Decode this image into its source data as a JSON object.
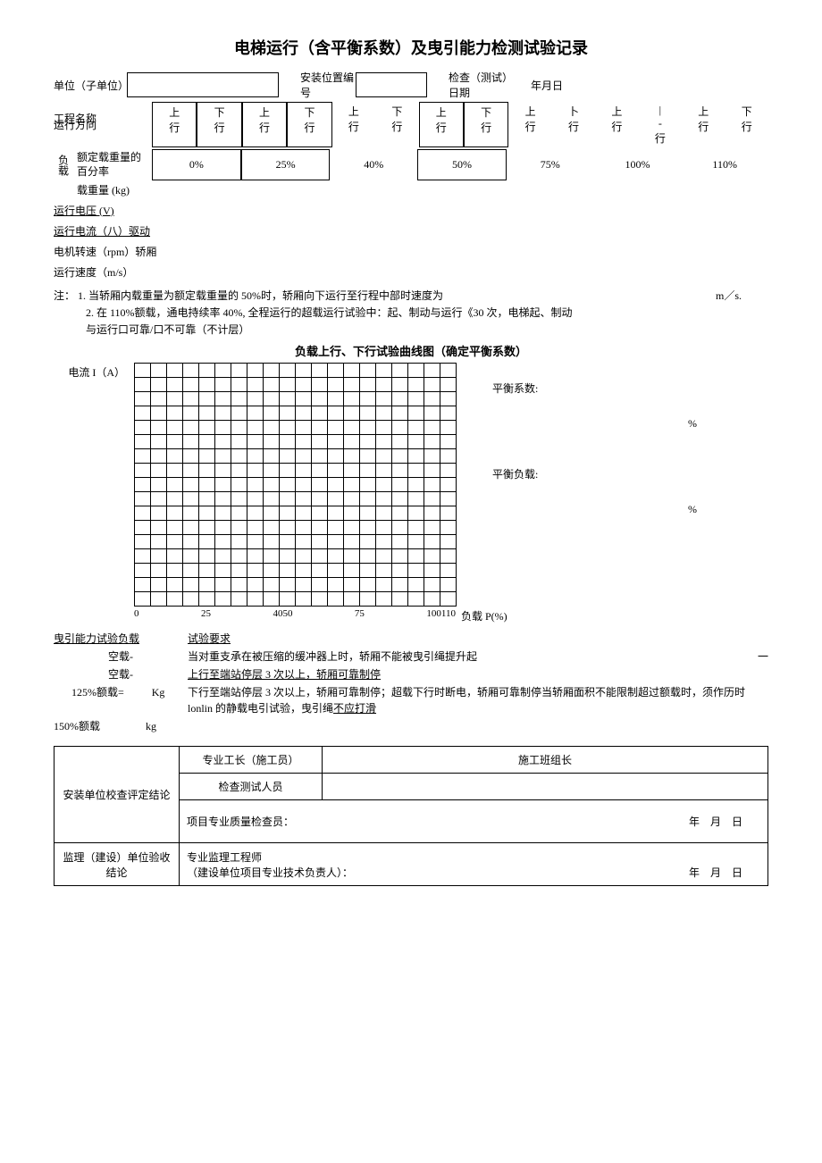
{
  "title": "电梯运行（含平衡系数）及曳引能力检测试验记录",
  "header": {
    "unit_label": "单位（子单位）",
    "project_label": "工程名称",
    "install_pos_label": "安装位置编号",
    "check_date_label": "检查（测试）日期",
    "date_placeholder": "年月日"
  },
  "direction": {
    "label": "运行方向",
    "cells": [
      "上行",
      "下行",
      "上行",
      "下行",
      "上行",
      "下行",
      "上行",
      "下行",
      "上行",
      "卜行",
      "上行",
      "|-行",
      "上行",
      "下行"
    ],
    "boxed": [
      true,
      true,
      true,
      true,
      false,
      false,
      true,
      true,
      false,
      false,
      false,
      false,
      false,
      false
    ]
  },
  "load": {
    "side": "负载",
    "pct_label": "额定载重量的百分率",
    "percents": [
      "0%",
      "25%",
      "40%",
      "50%",
      "75%",
      "100%",
      "110%"
    ],
    "boxed": [
      true,
      true,
      false,
      true,
      false,
      false,
      false
    ],
    "weight_label": "载重量 (kg)"
  },
  "measures": [
    {
      "text": "运行电压 (V)",
      "underline": true
    },
    {
      "text": "运行电流（八）驱动",
      "underline": true
    },
    {
      "text": "电机转速（rpm）轿厢",
      "underline": false
    },
    {
      "text": "运行速度（m/s）",
      "underline": false
    }
  ],
  "notes": {
    "prefix": "注：",
    "line1": "1. 当轿厢内载重量为额定载重量的 50%时，轿厢向下运行至行程中部时速度为",
    "line1_suffix": "m／s.",
    "line2": "2. 在 110%额载，通电持续率 40%, 全程运行的超载运行试验中：起、制动与运行《30 次，电梯起、制动",
    "line2b": "与运行口可靠/口不可靠（不计层）"
  },
  "chart": {
    "title": "负载上行、下行试验曲线图（确定平衡系数）",
    "y_label": "电流 I（A）",
    "x_ticks": [
      "0",
      "25",
      "4050",
      "75",
      "100110"
    ],
    "x_label": "负载 P(%)",
    "rows": 17,
    "cols": 20,
    "cell_border": "#000000",
    "coeff_label": "平衡系数:",
    "pct_symbol": "%",
    "load_label": "平衡负载:"
  },
  "test": {
    "heading": "曳引能力试验负载",
    "req_heading": "试验要求",
    "rows": [
      {
        "left": "空载-",
        "right": "当对重支承在被压缩的缓冲器上时，轿厢不能被曳引绳提升起",
        "right_suffix": "一"
      },
      {
        "left": "空载-",
        "right_u": "上行至端站停层 3 次以上，轿厢可靠制停"
      },
      {
        "left": "125%额载=",
        "unit": "Kg",
        "right": "下行至端站停层 3 次以上，轿厢可靠制停；超载下行时断电，轿厢可靠制停当轿厢面积不能限制超过额载时，须作历时 lonlin 的静载电引试验，曳引绳",
        "right_u_tail": "不应打滑"
      },
      {
        "left": "150%额载",
        "unit": "kg"
      }
    ]
  },
  "sign": {
    "install_label": "安装单位校查评定结论",
    "foreman": "专业工长（施工员）",
    "team": "施工班组长",
    "tester": "检查测试人员",
    "qc": "项目专业质量检查员：",
    "supervise_label": "监理（建设）单位验收结论",
    "engineer": "专业监理工程师",
    "owner": "（建设单位项目专业技术负责人）：",
    "date": "年　月　日"
  }
}
